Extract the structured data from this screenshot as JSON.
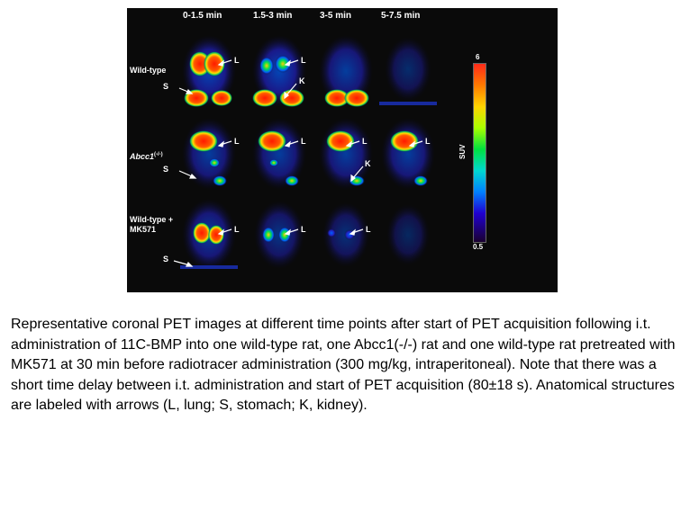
{
  "figure": {
    "columns": [
      "0-1.5 min",
      "1.5-3 min",
      "3-5 min",
      "5-7.5 min"
    ],
    "rows": [
      {
        "label_line1": "Wild-type",
        "label_line2": ""
      },
      {
        "label_line1": "Abcc1",
        "label_sup": "(-/-)"
      },
      {
        "label_line1": "Wild-type +",
        "label_line2": "MK571"
      }
    ],
    "annotations": {
      "lung": "L",
      "stomach": "S",
      "kidney": "K"
    },
    "colorbar": {
      "max_label": "6",
      "min_label": "0.5",
      "axis_label": "SUV"
    }
  },
  "caption": "Representative coronal PET images at different time points after start of PET acquisition following i.t. administration of 11C-BMP into one wild-type rat, one Abcc1(-/-) rat and one wild-type rat pretreated with MK571 at 30 min before radiotracer administration (300 mg/kg, intraperitoneal). Note that there was a short time delay between i.t. administration and start of PET acquisition (80±18 s). Anatomical structures are labeled with arrows (L, lung; S, stomach; K, kidney)."
}
